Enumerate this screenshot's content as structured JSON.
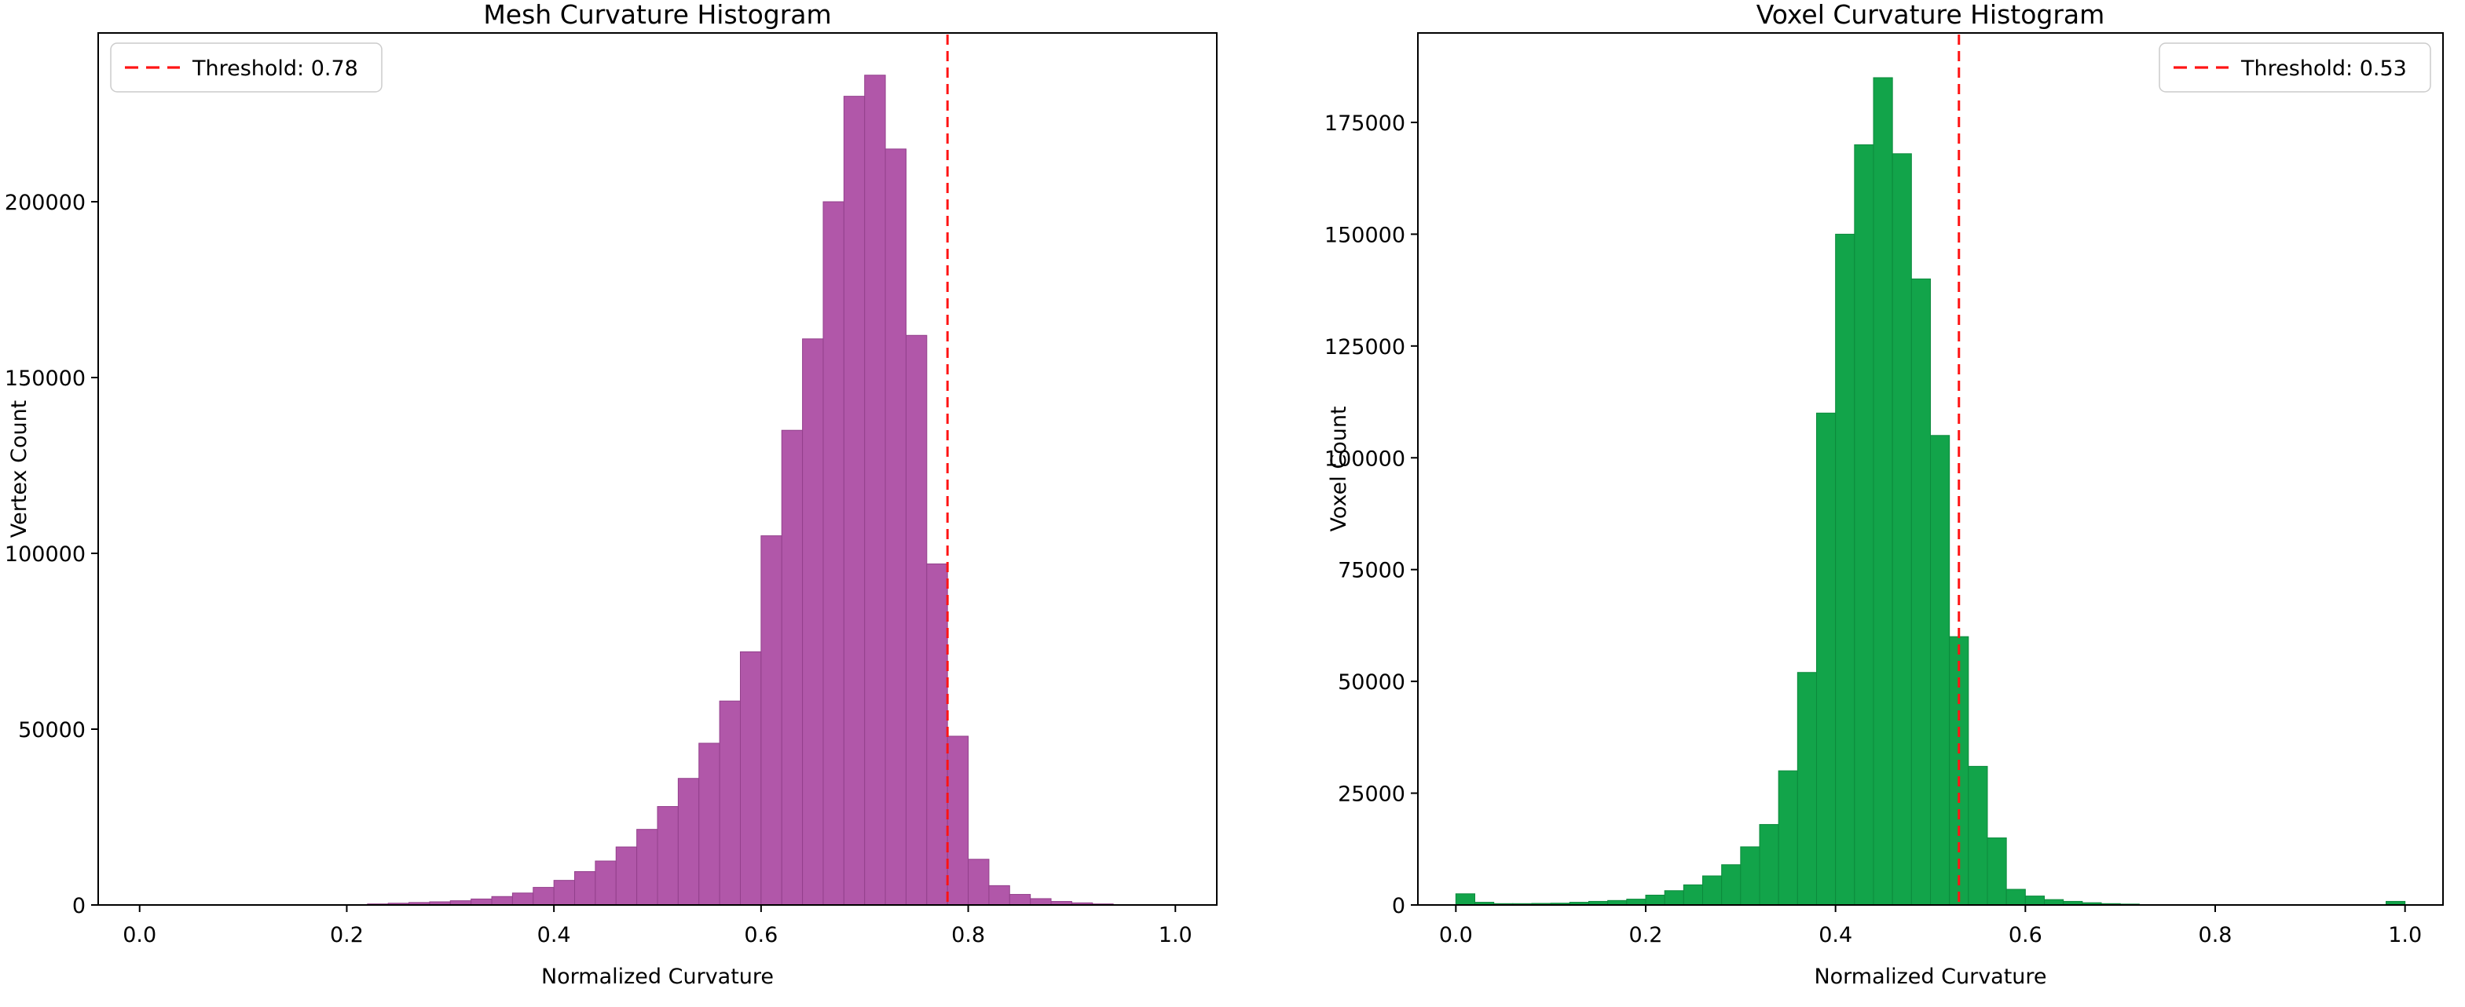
{
  "chart_data": [
    {
      "type": "bar",
      "title": "Mesh Curvature Histogram",
      "xlabel": "Normalized Curvature",
      "ylabel": "Vertex Count",
      "bar_color": "#b157a9",
      "bar_edge_color": "#93408c",
      "threshold": 0.78,
      "threshold_color": "#ff1414",
      "legend_label": "Threshold: 0.78",
      "legend_loc": "upper-left",
      "xlim": [
        -0.04,
        1.04
      ],
      "ylim": [
        0,
        248000
      ],
      "xticks": [
        0.0,
        0.2,
        0.4,
        0.6,
        0.8,
        1.0
      ],
      "xtick_labels": [
        "0.0",
        "0.2",
        "0.4",
        "0.6",
        "0.8",
        "1.0"
      ],
      "yticks": [
        0,
        50000,
        100000,
        150000,
        200000
      ],
      "ytick_labels": [
        "0",
        "50000",
        "100000",
        "150000",
        "200000"
      ],
      "bin_start": 0.22,
      "bin_width": 0.02,
      "counts": [
        300,
        500,
        700,
        900,
        1200,
        1700,
        2400,
        3400,
        5000,
        7000,
        9500,
        12500,
        16500,
        21500,
        28000,
        36000,
        46000,
        58000,
        72000,
        105000,
        135000,
        161000,
        200000,
        230000,
        236000,
        215000,
        162000,
        97000,
        48000,
        13000,
        5500,
        3000,
        1800,
        1000,
        600,
        300
      ]
    },
    {
      "type": "bar",
      "title": "Voxel Curvature Histogram",
      "xlabel": "Normalized Curvature",
      "ylabel": "Voxel Count",
      "bar_color": "#12a44a",
      "bar_edge_color": "#0c8a3c",
      "threshold": 0.53,
      "threshold_color": "#ff1414",
      "legend_label": "Threshold: 0.53",
      "legend_loc": "upper-right",
      "xlim": [
        -0.04,
        1.04
      ],
      "ylim": [
        0,
        195000
      ],
      "xticks": [
        0.0,
        0.2,
        0.4,
        0.6,
        0.8,
        1.0
      ],
      "xtick_labels": [
        "0.0",
        "0.2",
        "0.4",
        "0.6",
        "0.8",
        "1.0"
      ],
      "yticks": [
        0,
        25000,
        50000,
        75000,
        100000,
        125000,
        150000,
        175000
      ],
      "ytick_labels": [
        "0",
        "25000",
        "50000",
        "75000",
        "100000",
        "125000",
        "150000",
        "175000"
      ],
      "bin_start": 0.0,
      "bin_width": 0.02,
      "counts": [
        2500,
        600,
        300,
        300,
        350,
        400,
        600,
        800,
        1000,
        1300,
        2200,
        3200,
        4500,
        6500,
        9000,
        13000,
        18000,
        30000,
        52000,
        110000,
        150000,
        170000,
        185000,
        168000,
        140000,
        105000,
        60000,
        31000,
        15000,
        3500,
        2000,
        1200,
        800,
        500,
        300,
        200,
        0,
        0,
        0,
        0,
        0,
        0,
        0,
        0,
        0,
        0,
        0,
        0,
        0,
        800
      ]
    }
  ]
}
